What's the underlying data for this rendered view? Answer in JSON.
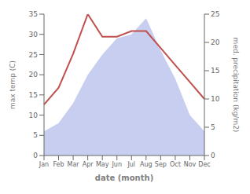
{
  "chart_data": {
    "type": "combo",
    "categories": [
      "Jan",
      "Feb",
      "Mar",
      "Apr",
      "May",
      "Jun",
      "Jul",
      "Aug",
      "Sep",
      "Oct",
      "Nov",
      "Dec"
    ],
    "series": [
      {
        "type": "area",
        "color": "#c8cef0",
        "values": [
          6,
          8,
          13,
          20,
          25,
          29,
          30,
          34,
          26,
          19,
          10,
          6
        ]
      },
      {
        "type": "line",
        "color": "#c0504d",
        "axis": "y2",
        "values": [
          9,
          12,
          18,
          25,
          21,
          21,
          22,
          22,
          19,
          16,
          13,
          10
        ]
      }
    ],
    "xlabel": "date (month)",
    "ylabel": "max temp (C)",
    "y2label": "med. precipitation (kg/m2)",
    "ylim": [
      0,
      35
    ],
    "yticks": [
      0,
      5,
      10,
      15,
      20,
      25,
      30,
      35
    ],
    "y2lim": [
      0,
      25
    ],
    "y2ticks": [
      0,
      5,
      10,
      15,
      20,
      25
    ],
    "grid": false
  }
}
